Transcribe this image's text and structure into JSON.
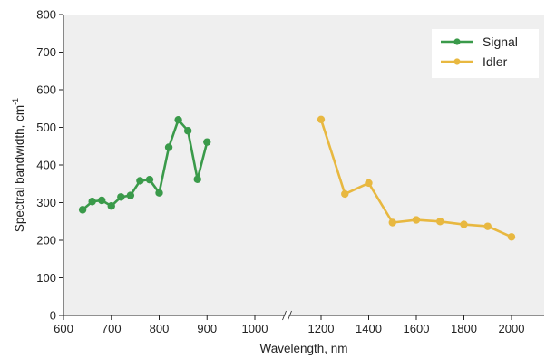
{
  "chart_data": {
    "type": "line",
    "xlabel": "Wavelength, nm",
    "ylabel": "Spectral bandwidth, cm",
    "ylabel_superscript": "-1",
    "x_axis_break": {
      "from": 1000,
      "to": 1150
    },
    "xlim": [
      600,
      2070
    ],
    "ylim": [
      0,
      800
    ],
    "x_ticks": [
      600,
      700,
      800,
      900,
      1000,
      1200,
      1400,
      1600,
      1800,
      2000
    ],
    "y_ticks": [
      0,
      100,
      200,
      300,
      400,
      500,
      600,
      700,
      800
    ],
    "grid": false,
    "legend_position": "top-right",
    "series": [
      {
        "name": "Signal",
        "color": "#3a9a4a",
        "x": [
          640,
          660,
          680,
          700,
          720,
          740,
          760,
          780,
          800,
          820,
          840,
          860,
          880,
          900
        ],
        "y": [
          281,
          303,
          306,
          291,
          315,
          319,
          358,
          361,
          326,
          447,
          520,
          491,
          362,
          461
        ]
      },
      {
        "name": "Idler",
        "color": "#e8b840",
        "x": [
          1200,
          1300,
          1400,
          1500,
          1600,
          1700,
          1800,
          1900,
          2000
        ],
        "y": [
          521,
          323,
          352,
          247,
          254,
          250,
          242,
          237,
          209
        ]
      }
    ]
  },
  "style": {
    "plot_background": "#efefef",
    "axis_color": "#222222",
    "break_color": "#ffffff"
  }
}
